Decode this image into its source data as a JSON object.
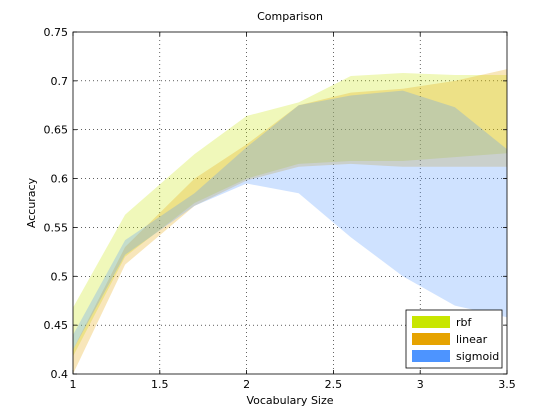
{
  "chart_data": {
    "type": "area",
    "title": "Comparison",
    "xlabel": "Vocabulary Size",
    "ylabel": "Accuracy",
    "xlim": [
      1,
      3.5
    ],
    "ylim": [
      0.4,
      0.75
    ],
    "xticks": [
      "1",
      "1.5",
      "2",
      "2.5",
      "3",
      "3.5"
    ],
    "yticks": [
      "0.4",
      "0.45",
      "0.5",
      "0.55",
      "0.6",
      "0.65",
      "0.7",
      "0.75"
    ],
    "grid": true,
    "legend_position": "bottom-right",
    "series": [
      {
        "name": "rbf",
        "color": "#c8e600",
        "x": [
          1,
          1.3,
          1.7,
          2.0,
          2.3,
          2.6,
          2.9,
          3.2,
          3.5
        ],
        "upper": [
          0.468,
          0.563,
          0.625,
          0.664,
          0.678,
          0.705,
          0.708,
          0.706,
          0.706
        ],
        "lower": [
          0.418,
          0.52,
          0.575,
          0.6,
          0.615,
          0.618,
          0.618,
          0.622,
          0.626
        ]
      },
      {
        "name": "linear",
        "color": "#e6a300",
        "x": [
          1,
          1.3,
          1.7,
          2.0,
          2.3,
          2.6,
          2.9,
          3.2,
          3.5
        ],
        "upper": [
          0.425,
          0.53,
          0.6,
          0.635,
          0.675,
          0.688,
          0.692,
          0.7,
          0.712
        ],
        "lower": [
          0.4,
          0.512,
          0.572,
          0.598,
          0.612,
          0.615,
          0.612,
          0.612,
          0.612
        ]
      },
      {
        "name": "sigmoid",
        "color": "#4d94ff",
        "x": [
          1,
          1.3,
          1.7,
          2.0,
          2.3,
          2.6,
          2.9,
          3.2,
          3.5
        ],
        "upper": [
          0.44,
          0.537,
          0.585,
          0.632,
          0.675,
          0.685,
          0.69,
          0.673,
          0.63
        ],
        "lower": [
          0.425,
          0.522,
          0.572,
          0.595,
          0.585,
          0.54,
          0.5,
          0.47,
          0.458
        ]
      }
    ]
  }
}
